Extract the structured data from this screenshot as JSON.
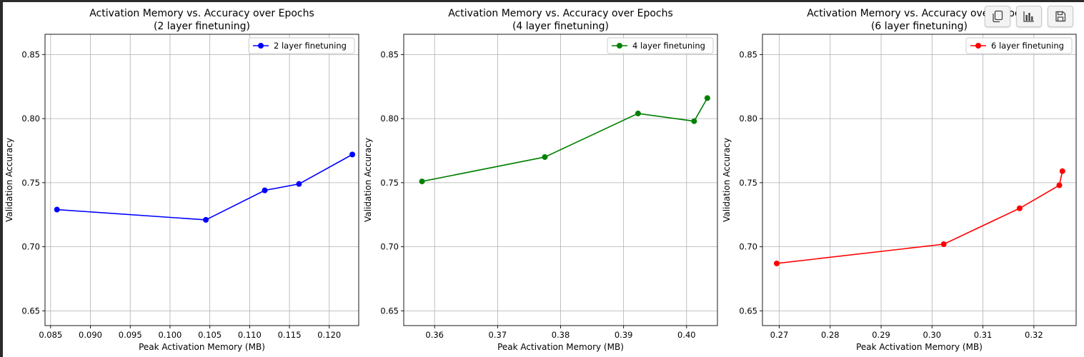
{
  "chart_data": [
    {
      "type": "line",
      "title": "Activation Memory vs. Accuracy over Epochs\n(2 layer finetuning)",
      "xlabel": "Peak Activation Memory (MB)",
      "ylabel": "Validation Accuracy",
      "xlim": [
        0.0843,
        0.1237
      ],
      "ylim": [
        0.6385,
        0.8658
      ],
      "xticks": [
        0.085,
        0.09,
        0.095,
        0.1,
        0.105,
        0.11,
        0.115,
        0.12
      ],
      "xtick_labels": [
        "0.085",
        "0.090",
        "0.095",
        "0.100",
        "0.105",
        "0.110",
        "0.115",
        "0.120"
      ],
      "yticks": [
        0.65,
        0.7,
        0.75,
        0.8,
        0.85
      ],
      "ytick_labels": [
        "0.65",
        "0.70",
        "0.75",
        "0.80",
        "0.85"
      ],
      "grid": true,
      "legend_position": "top-right",
      "series": [
        {
          "name": "2 layer finetuning",
          "color": "#0000ff",
          "marker": "circle",
          "x": [
            0.0858,
            0.1045,
            0.1119,
            0.1162,
            0.1229
          ],
          "y": [
            0.729,
            0.721,
            0.744,
            0.749,
            0.772
          ]
        }
      ]
    },
    {
      "type": "line",
      "title": "Activation Memory vs. Accuracy over Epochs\n(4 layer finetuning)",
      "xlabel": "Peak Activation Memory (MB)",
      "ylabel": "Validation Accuracy",
      "xlim": [
        0.3551,
        0.4049
      ],
      "ylim": [
        0.6385,
        0.8658
      ],
      "xticks": [
        0.36,
        0.37,
        0.38,
        0.39,
        0.4
      ],
      "xtick_labels": [
        "0.36",
        "0.37",
        "0.38",
        "0.39",
        "0.40"
      ],
      "yticks": [
        0.65,
        0.7,
        0.75,
        0.8,
        0.85
      ],
      "ytick_labels": [
        "0.65",
        "0.70",
        "0.75",
        "0.80",
        "0.85"
      ],
      "grid": true,
      "legend_position": "top-right",
      "series": [
        {
          "name": "4 layer finetuning",
          "color": "#008000",
          "marker": "circle",
          "x": [
            0.358,
            0.3775,
            0.3923,
            0.4012,
            0.4033
          ],
          "y": [
            0.751,
            0.77,
            0.804,
            0.798,
            0.816
          ]
        }
      ]
    },
    {
      "type": "line",
      "title": "Activation Memory vs. Accuracy over Epochs\n(6 layer finetuning)",
      "xlabel": "Peak Activation Memory (MB)",
      "ylabel": "Validation Accuracy",
      "xlim": [
        0.2667,
        0.3283
      ],
      "ylim": [
        0.6385,
        0.8658
      ],
      "xticks": [
        0.27,
        0.28,
        0.29,
        0.3,
        0.31,
        0.32
      ],
      "xtick_labels": [
        "0.27",
        "0.28",
        "0.29",
        "0.30",
        "0.31",
        "0.32"
      ],
      "yticks": [
        0.65,
        0.7,
        0.75,
        0.8,
        0.85
      ],
      "ytick_labels": [
        "0.65",
        "0.70",
        "0.75",
        "0.80",
        "0.85"
      ],
      "grid": true,
      "legend_position": "top-right",
      "series": [
        {
          "name": "6 layer finetuning",
          "color": "#ff0000",
          "marker": "circle",
          "x": [
            0.2695,
            0.3023,
            0.3172,
            0.325,
            0.3256
          ],
          "y": [
            0.687,
            0.702,
            0.73,
            0.748,
            0.759
          ]
        }
      ]
    }
  ],
  "toolbar": {
    "buttons": [
      {
        "name": "copy-button",
        "icon": "copy-icon"
      },
      {
        "name": "chart-button",
        "icon": "bar-chart-icon"
      },
      {
        "name": "save-button",
        "icon": "save-icon"
      }
    ]
  }
}
